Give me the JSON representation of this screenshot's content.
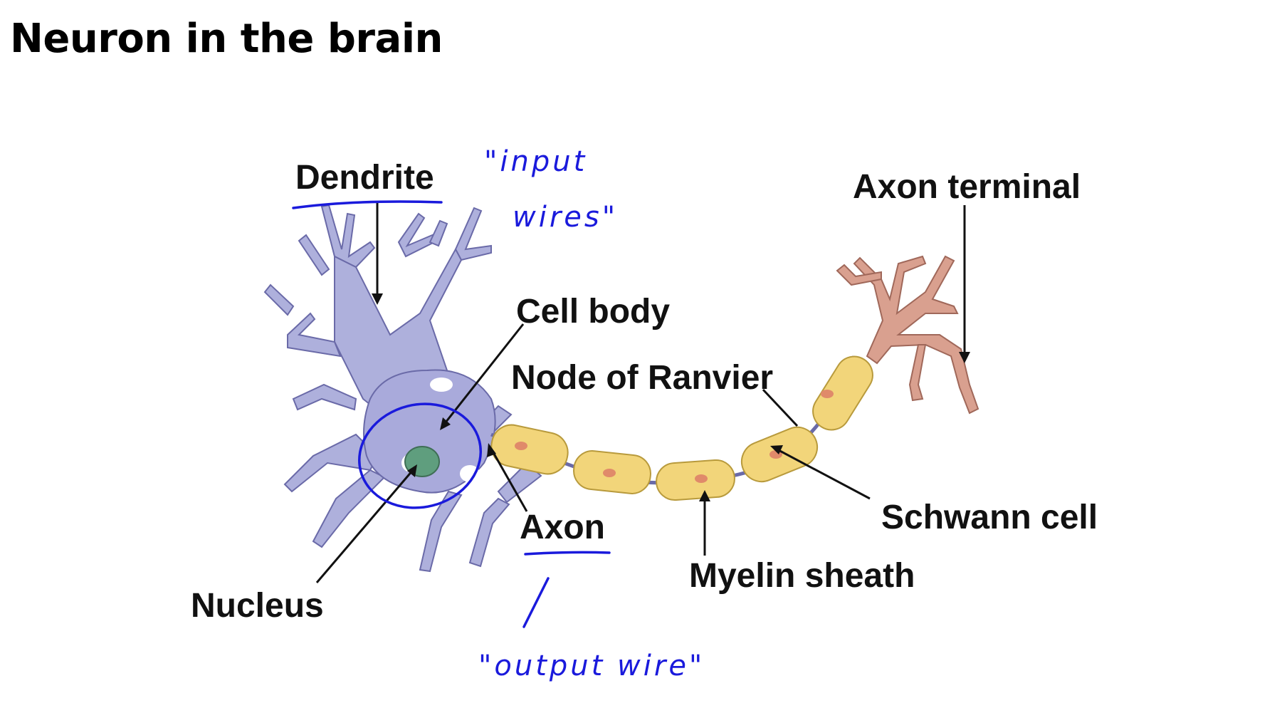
{
  "title": "Neuron in the brain",
  "labels": {
    "dendrite": "Dendrite",
    "cell_body": "Cell body",
    "node_of_ranvier": "Node of Ranvier",
    "axon_terminal": "Axon terminal",
    "schwann_cell": "Schwann cell",
    "axon": "Axon",
    "myelin_sheath": "Myelin sheath",
    "nucleus": "Nucleus"
  },
  "annotations": {
    "input_line1": "\"input",
    "input_line2": "wires\"",
    "output": "\"output wire\""
  },
  "colors": {
    "dendrite_fill": "#aeb0dc",
    "dendrite_stroke": "#6a6aa8",
    "nucleus_fill": "#5f9e7e",
    "myelin_fill": "#f2d57a",
    "myelin_stroke": "#b89a3c",
    "schwann_nucleus": "#e08a6a",
    "terminal_fill": "#d9a08f",
    "ink": "#1a1adc"
  }
}
